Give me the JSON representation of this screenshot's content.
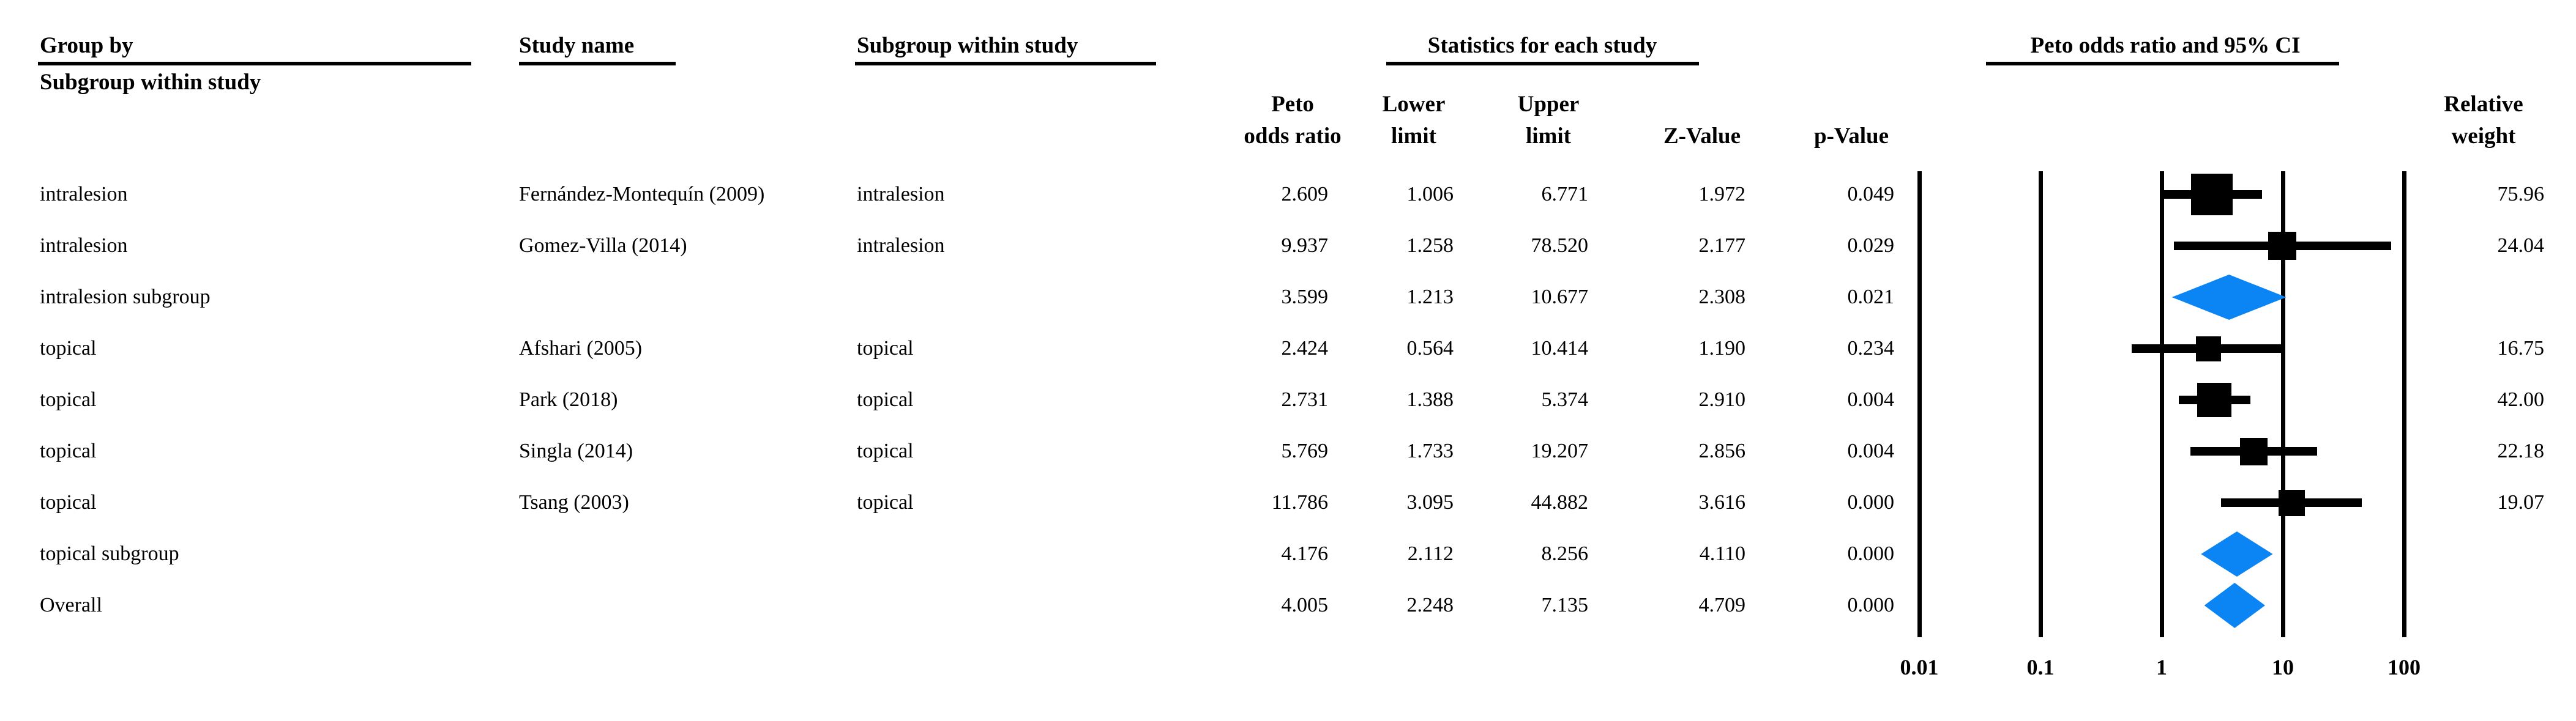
{
  "table_headers": {
    "col1_line1": "Group by",
    "col1_line2": "Subgroup within study",
    "col2": "Study name",
    "col3": "Subgroup within study",
    "stats_group_title": "Statistics for each study",
    "stat_columns": [
      {
        "line1": "Peto",
        "line2": "odds ratio"
      },
      {
        "line1": "Lower",
        "line2": "limit"
      },
      {
        "line1": "Upper",
        "line2": "limit"
      },
      {
        "line1": "",
        "line2": "Z-Value"
      },
      {
        "line1": "",
        "line2": "p-Value"
      }
    ],
    "plot_group_title": "Peto odds ratio and 95% CI",
    "weight_line1": "Relative",
    "weight_line2": "weight"
  },
  "colors": {
    "diamond_fill": "#0b84f4",
    "marker_fill": "#000000"
  },
  "chart_data": {
    "type": "forest",
    "x_axis": {
      "scale": "log10",
      "tick_labels": [
        "0.01",
        "0.1",
        "1",
        "10",
        "100"
      ],
      "tick_values": [
        0.01,
        0.1,
        1,
        10,
        100
      ]
    },
    "rows": [
      {
        "group": "intralesion",
        "study": "Fernández-Montequín (2009)",
        "subgroup": "intralesion",
        "peto": "2.609",
        "lower": "1.006",
        "upper": "6.771",
        "z": "1.972",
        "p": "0.049",
        "weight": "75.96",
        "marker": "square"
      },
      {
        "group": "intralesion",
        "study": "Gomez-Villa (2014)",
        "subgroup": "intralesion",
        "peto": "9.937",
        "lower": "1.258",
        "upper": "78.520",
        "z": "2.177",
        "p": "0.029",
        "weight": "24.04",
        "marker": "square"
      },
      {
        "group": "intralesion subgroup",
        "study": "",
        "subgroup": "",
        "peto": "3.599",
        "lower": "1.213",
        "upper": "10.677",
        "z": "2.308",
        "p": "0.021",
        "weight": "",
        "marker": "diamond"
      },
      {
        "group": "topical",
        "study": "Afshari (2005)",
        "subgroup": "topical",
        "peto": "2.424",
        "lower": "0.564",
        "upper": "10.414",
        "z": "1.190",
        "p": "0.234",
        "weight": "16.75",
        "marker": "square"
      },
      {
        "group": "topical",
        "study": "Park (2018)",
        "subgroup": "topical",
        "peto": "2.731",
        "lower": "1.388",
        "upper": "5.374",
        "z": "2.910",
        "p": "0.004",
        "weight": "42.00",
        "marker": "square"
      },
      {
        "group": "topical",
        "study": "Singla (2014)",
        "subgroup": "topical",
        "peto": "5.769",
        "lower": "1.733",
        "upper": "19.207",
        "z": "2.856",
        "p": "0.004",
        "weight": "22.18",
        "marker": "square"
      },
      {
        "group": "topical",
        "study": "Tsang (2003)",
        "subgroup": "topical",
        "peto": "11.786",
        "lower": "3.095",
        "upper": "44.882",
        "z": "3.616",
        "p": "0.000",
        "weight": "19.07",
        "marker": "square"
      },
      {
        "group": "topical subgroup",
        "study": "",
        "subgroup": "",
        "peto": "4.176",
        "lower": "2.112",
        "upper": "8.256",
        "z": "4.110",
        "p": "0.000",
        "weight": "",
        "marker": "diamond"
      },
      {
        "group": "Overall",
        "study": "",
        "subgroup": "",
        "peto": "4.005",
        "lower": "2.248",
        "upper": "7.135",
        "z": "4.709",
        "p": "0.000",
        "weight": "",
        "marker": "diamond"
      }
    ]
  }
}
